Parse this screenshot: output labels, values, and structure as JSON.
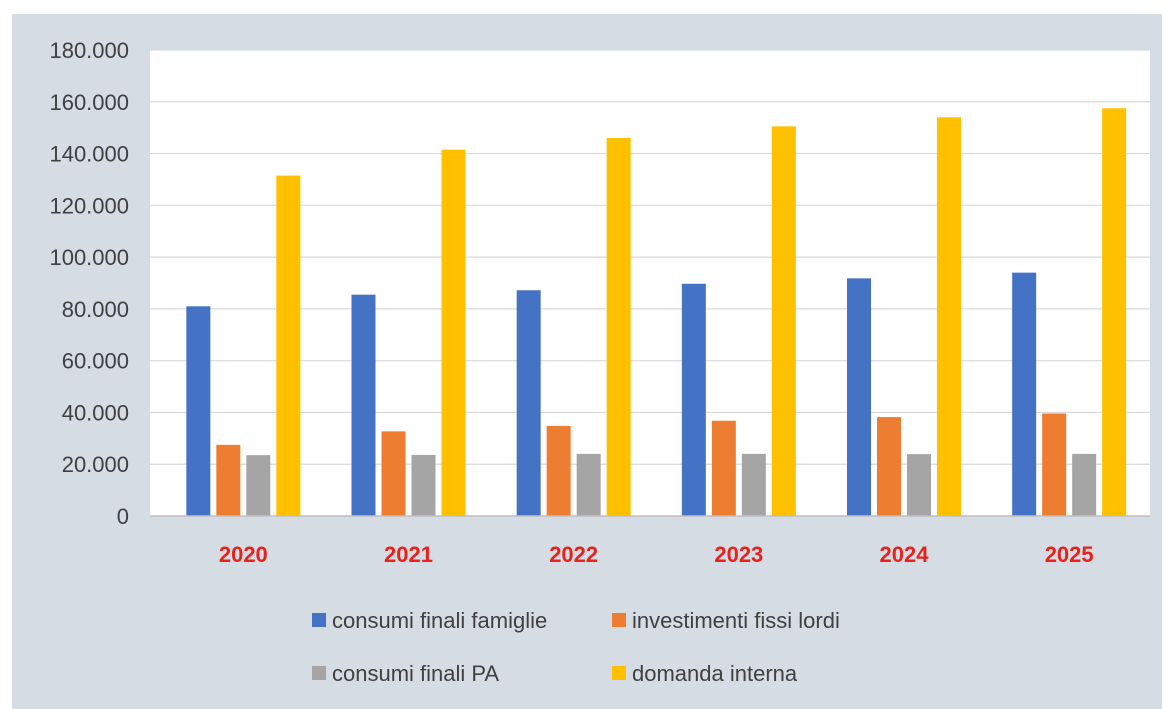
{
  "chart_data": {
    "type": "bar",
    "categories": [
      "2020",
      "2021",
      "2022",
      "2023",
      "2024",
      "2025"
    ],
    "series": [
      {
        "name": "consumi finali famiglie",
        "color": "#4472c4",
        "values": [
          81000,
          85500,
          87200,
          89700,
          91800,
          94000
        ]
      },
      {
        "name": "investimenti fissi lordi",
        "color": "#ed7d31",
        "values": [
          27500,
          32700,
          34800,
          36800,
          38200,
          39600
        ]
      },
      {
        "name": "consumi finali PA",
        "color": "#a5a5a5",
        "values": [
          23500,
          23600,
          24000,
          24000,
          23900,
          24000
        ]
      },
      {
        "name": "domanda interna",
        "color": "#ffc000",
        "values": [
          131500,
          141500,
          146000,
          150500,
          154000,
          157500
        ]
      }
    ],
    "y_ticks": [
      "0",
      "20.000",
      "40.000",
      "60.000",
      "80.000",
      "100.000",
      "120.000",
      "140.000",
      "160.000",
      "180.000"
    ],
    "ylim": [
      0,
      180000
    ],
    "title": "",
    "xlabel": "",
    "ylabel": "",
    "grid": true,
    "legend_position": "bottom",
    "category_label_color": "#e8221b",
    "plot_background": "#ffffff",
    "frame_background": "#d6dce4",
    "gridline_color": "#d9d9d9"
  }
}
